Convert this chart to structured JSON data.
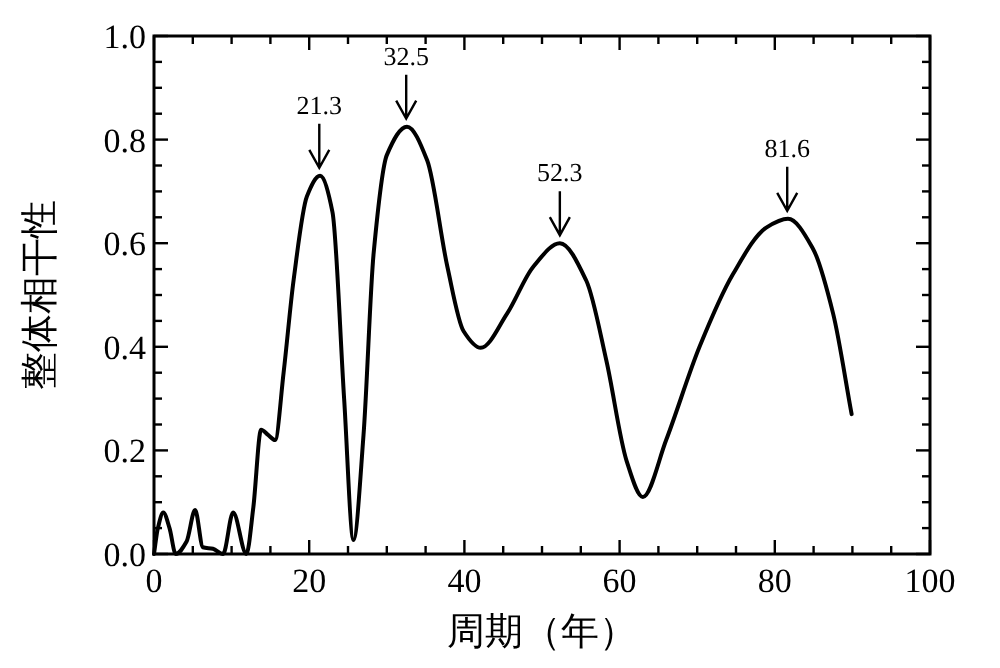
{
  "chart_data": {
    "type": "line",
    "xlabel": "周期（年）",
    "ylabel": "整体相干性",
    "x": [
      0,
      0.5,
      1.2,
      2,
      2.8,
      4.2,
      5.3,
      6.3,
      7.6,
      8.9,
      10.2,
      11.9,
      12.8,
      13.8,
      14.7,
      15.6,
      16.7,
      18.0,
      19.7,
      21.4,
      23.0,
      24.5,
      25.7,
      27.0,
      28.3,
      30.0,
      32.6,
      35.2,
      37.8,
      39.9,
      42.1,
      45.5,
      48.9,
      52.3,
      55.7,
      58.3,
      60.9,
      63.0,
      66.0,
      70.3,
      74.6,
      78.9,
      81.7,
      84.9,
      87.5,
      89.9
    ],
    "series": [
      {
        "color": "#000000",
        "values": [
          0.0,
          0.05,
          0.08,
          0.05,
          0.0,
          0.024,
          0.085,
          0.013,
          0.01,
          0.0,
          0.08,
          0.0,
          0.09,
          0.24,
          0.23,
          0.22,
          0.35,
          0.53,
          0.69,
          0.73,
          0.66,
          0.3,
          0.027,
          0.23,
          0.58,
          0.77,
          0.825,
          0.76,
          0.555,
          0.43,
          0.398,
          0.464,
          0.555,
          0.6,
          0.528,
          0.373,
          0.18,
          0.11,
          0.22,
          0.4,
          0.54,
          0.63,
          0.647,
          0.59,
          0.465,
          0.27
        ]
      }
    ],
    "xlim": [
      0,
      100
    ],
    "ylim": [
      0,
      1
    ],
    "xticks": [
      0,
      {
        "value": 5,
        "label": null
      },
      {
        "value": 10,
        "label": null
      },
      {
        "value": 15,
        "label": null
      },
      20,
      {
        "value": 25,
        "label": null
      },
      {
        "value": 30,
        "label": null
      },
      {
        "value": 35,
        "label": null
      },
      40,
      {
        "value": 45,
        "label": null
      },
      {
        "value": 50,
        "label": null
      },
      {
        "value": 55,
        "label": null
      },
      60,
      {
        "value": 65,
        "label": null
      },
      {
        "value": 70,
        "label": null
      },
      {
        "value": 75,
        "label": null
      },
      80,
      {
        "value": 85,
        "label": null
      },
      {
        "value": 90,
        "label": null
      },
      {
        "value": 95,
        "label": null
      },
      100
    ],
    "yticks": [
      {
        "value": 0,
        "label": "0.0"
      },
      {
        "value": 0.05,
        "label": null
      },
      {
        "value": 0.1,
        "label": null
      },
      {
        "value": 0.15,
        "label": null
      },
      {
        "value": 0.2,
        "label": "0.2"
      },
      {
        "value": 0.25,
        "label": null
      },
      {
        "value": 0.3,
        "label": null
      },
      {
        "value": 0.35,
        "label": null
      },
      {
        "value": 0.4,
        "label": "0.4"
      },
      {
        "value": 0.45,
        "label": null
      },
      {
        "value": 0.5,
        "label": null
      },
      {
        "value": 0.55,
        "label": null
      },
      {
        "value": 0.6,
        "label": "0.6"
      },
      {
        "value": 0.65,
        "label": null
      },
      {
        "value": 0.7,
        "label": null
      },
      {
        "value": 0.75,
        "label": null
      },
      {
        "value": 0.8,
        "label": "0.8"
      },
      {
        "value": 0.85,
        "label": null
      },
      {
        "value": 0.9,
        "label": null
      },
      {
        "value": 0.95,
        "label": null
      },
      {
        "value": 1.0,
        "label": "1.0"
      }
    ],
    "annotations": [
      {
        "text": "21.3",
        "x": 21.3,
        "y": 0.73
      },
      {
        "text": "32.5",
        "x": 32.5,
        "y": 0.825
      },
      {
        "text": "52.3",
        "x": 52.3,
        "y": 0.6
      },
      {
        "text": "81.6",
        "x": 81.6,
        "y": 0.647
      }
    ],
    "grid": false,
    "marker": "none",
    "line_style": "solid"
  }
}
